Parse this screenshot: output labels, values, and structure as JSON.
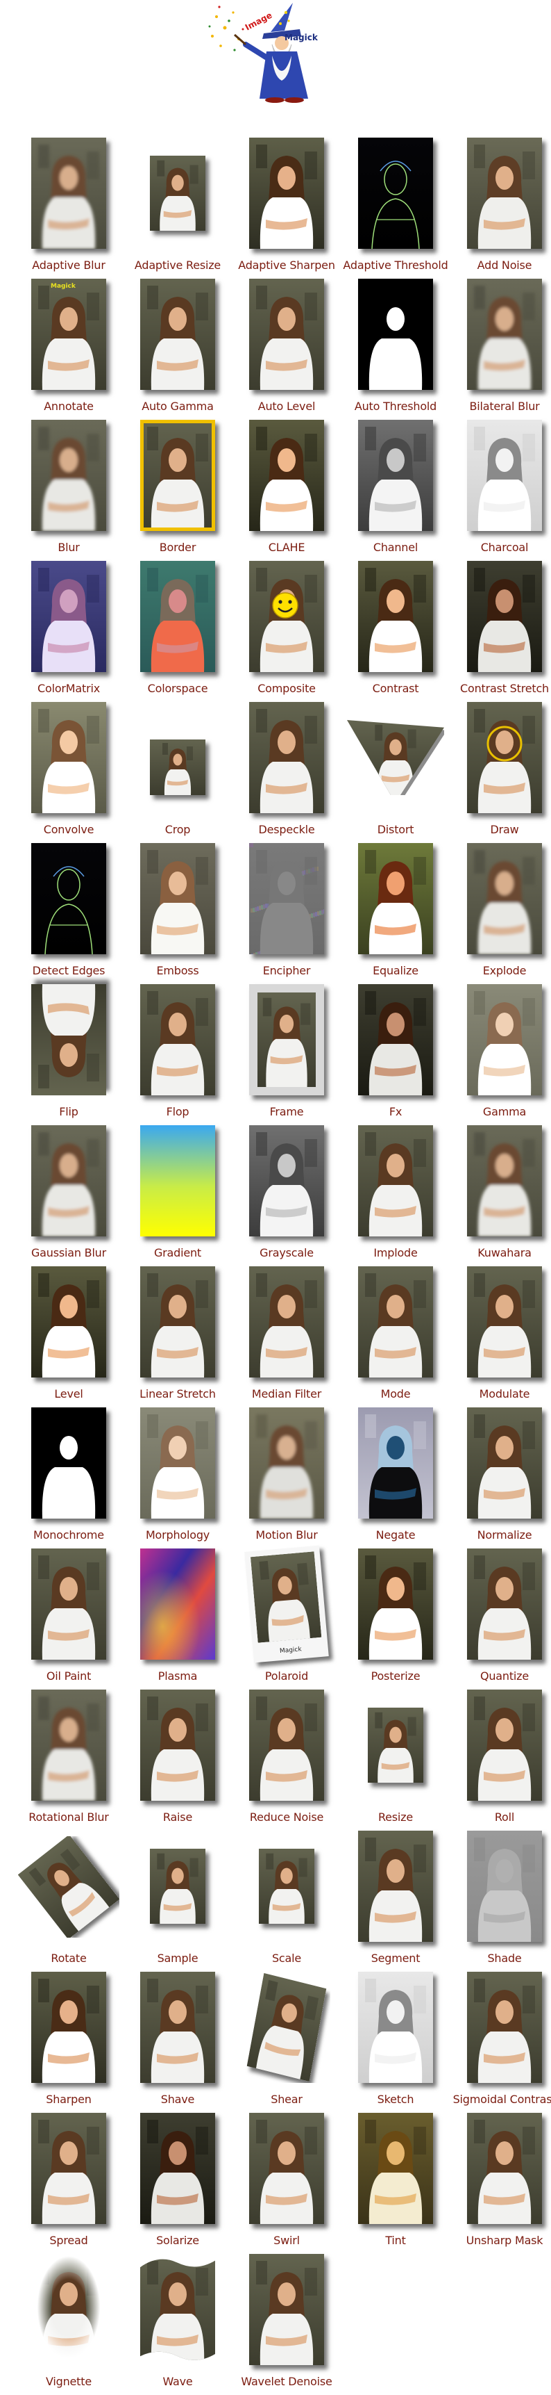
{
  "logo": {
    "title": "Image Magick",
    "icon": "wizard-logo-icon"
  },
  "items": [
    {
      "label": "Adaptive Blur",
      "variant": "blur",
      "size": "normal"
    },
    {
      "label": "Adaptive Resize",
      "variant": "normal",
      "size": "small"
    },
    {
      "label": "Adaptive Sharpen",
      "variant": "sharp",
      "size": "normal"
    },
    {
      "label": "Adaptive Threshold",
      "variant": "edges",
      "size": "normal"
    },
    {
      "label": "Add Noise",
      "variant": "noise",
      "size": "normal"
    },
    {
      "label": "Annotate",
      "variant": "annotate",
      "size": "normal"
    },
    {
      "label": "Auto Gamma",
      "variant": "normal",
      "size": "normal"
    },
    {
      "label": "Auto Level",
      "variant": "normal",
      "size": "normal"
    },
    {
      "label": "Auto Threshold",
      "variant": "threshold",
      "size": "normal"
    },
    {
      "label": "Bilateral Blur",
      "variant": "blur",
      "size": "normal"
    },
    {
      "label": "Blur",
      "variant": "blur",
      "size": "normal"
    },
    {
      "label": "Border",
      "variant": "border",
      "size": "normal"
    },
    {
      "label": "CLAHE",
      "variant": "contrast",
      "size": "normal"
    },
    {
      "label": "Channel",
      "variant": "gray",
      "size": "normal"
    },
    {
      "label": "Charcoal",
      "variant": "sketch",
      "size": "normal"
    },
    {
      "label": "ColorMatrix",
      "variant": "colormatrix",
      "size": "normal"
    },
    {
      "label": "Colorspace",
      "variant": "colorspace",
      "size": "normal"
    },
    {
      "label": "Composite",
      "variant": "composite",
      "size": "normal"
    },
    {
      "label": "Contrast",
      "variant": "contrast",
      "size": "normal"
    },
    {
      "label": "Contrast Stretch",
      "variant": "dark",
      "size": "normal"
    },
    {
      "label": "Convolve",
      "variant": "bright",
      "size": "normal"
    },
    {
      "label": "Crop",
      "variant": "normal",
      "size": "crop"
    },
    {
      "label": "Despeckle",
      "variant": "normal",
      "size": "normal"
    },
    {
      "label": "Distort",
      "variant": "distort",
      "size": "distort"
    },
    {
      "label": "Draw",
      "variant": "draw",
      "size": "normal"
    },
    {
      "label": "Detect Edges",
      "variant": "edges",
      "size": "normal"
    },
    {
      "label": "Emboss",
      "variant": "emboss",
      "size": "normal"
    },
    {
      "label": "Encipher",
      "variant": "encipher",
      "size": "normal"
    },
    {
      "label": "Equalize",
      "variant": "equalize",
      "size": "normal"
    },
    {
      "label": "Explode",
      "variant": "blur",
      "size": "normal"
    },
    {
      "label": "Flip",
      "variant": "flip",
      "size": "normal"
    },
    {
      "label": "Flop",
      "variant": "normal",
      "size": "normal"
    },
    {
      "label": "Frame",
      "variant": "frame",
      "size": "normal"
    },
    {
      "label": "Fx",
      "variant": "dark",
      "size": "normal"
    },
    {
      "label": "Gamma",
      "variant": "light",
      "size": "normal"
    },
    {
      "label": "Gaussian Blur",
      "variant": "blur",
      "size": "normal"
    },
    {
      "label": "Gradient",
      "variant": "gradient",
      "size": "normal"
    },
    {
      "label": "Grayscale",
      "variant": "gray",
      "size": "normal"
    },
    {
      "label": "Implode",
      "variant": "normal",
      "size": "normal"
    },
    {
      "label": "Kuwahara",
      "variant": "blur",
      "size": "normal"
    },
    {
      "label": "Level",
      "variant": "contrast",
      "size": "normal"
    },
    {
      "label": "Linear Stretch",
      "variant": "normal",
      "size": "normal"
    },
    {
      "label": "Median Filter",
      "variant": "normal",
      "size": "normal"
    },
    {
      "label": "Mode",
      "variant": "normal",
      "size": "normal"
    },
    {
      "label": "Modulate",
      "variant": "normal",
      "size": "normal"
    },
    {
      "label": "Monochrome",
      "variant": "threshold",
      "size": "normal"
    },
    {
      "label": "Morphology",
      "variant": "light",
      "size": "normal"
    },
    {
      "label": "Motion Blur",
      "variant": "motion",
      "size": "normal"
    },
    {
      "label": "Negate",
      "variant": "negate",
      "size": "normal"
    },
    {
      "label": "Normalize",
      "variant": "normal",
      "size": "normal"
    },
    {
      "label": "Oil Paint",
      "variant": "normal",
      "size": "normal"
    },
    {
      "label": "Plasma",
      "variant": "plasma",
      "size": "normal"
    },
    {
      "label": "Polaroid",
      "variant": "polaroid",
      "size": "polaroid",
      "caption": "Magick"
    },
    {
      "label": "Posterize",
      "variant": "contrast",
      "size": "normal"
    },
    {
      "label": "Quantize",
      "variant": "normal",
      "size": "normal"
    },
    {
      "label": "Rotational Blur",
      "variant": "blur",
      "size": "normal"
    },
    {
      "label": "Raise",
      "variant": "normal",
      "size": "normal"
    },
    {
      "label": "Reduce Noise",
      "variant": "normal",
      "size": "normal"
    },
    {
      "label": "Resize",
      "variant": "normal",
      "size": "resize"
    },
    {
      "label": "Roll",
      "variant": "normal",
      "size": "normal"
    },
    {
      "label": "Rotate",
      "variant": "normal",
      "size": "rotate"
    },
    {
      "label": "Sample",
      "variant": "normal",
      "size": "small"
    },
    {
      "label": "Scale",
      "variant": "normal",
      "size": "small"
    },
    {
      "label": "Segment",
      "variant": "normal",
      "size": "normal"
    },
    {
      "label": "Shade",
      "variant": "shade",
      "size": "normal"
    },
    {
      "label": "Sharpen",
      "variant": "sharp",
      "size": "normal"
    },
    {
      "label": "Shave",
      "variant": "normal",
      "size": "normal"
    },
    {
      "label": "Shear",
      "variant": "normal",
      "size": "shear"
    },
    {
      "label": "Sketch",
      "variant": "sketch",
      "size": "normal"
    },
    {
      "label": "Sigmoidal Contrast",
      "variant": "normal",
      "size": "normal"
    },
    {
      "label": "Spread",
      "variant": "normal",
      "size": "normal"
    },
    {
      "label": "Solarize",
      "variant": "dark",
      "size": "normal"
    },
    {
      "label": "Swirl",
      "variant": "normal",
      "size": "normal"
    },
    {
      "label": "Tint",
      "variant": "tint",
      "size": "normal"
    },
    {
      "label": "Unsharp Mask",
      "variant": "normal",
      "size": "normal"
    },
    {
      "label": "Vignette",
      "variant": "vignette",
      "size": "normal"
    },
    {
      "label": "Wave",
      "variant": "normal",
      "size": "wave"
    },
    {
      "label": "Wavelet Denoise",
      "variant": "normal",
      "size": "normal"
    }
  ],
  "colors": {
    "caption": "#7b1c10",
    "background": "#ffffff",
    "border": "#f0c000"
  }
}
